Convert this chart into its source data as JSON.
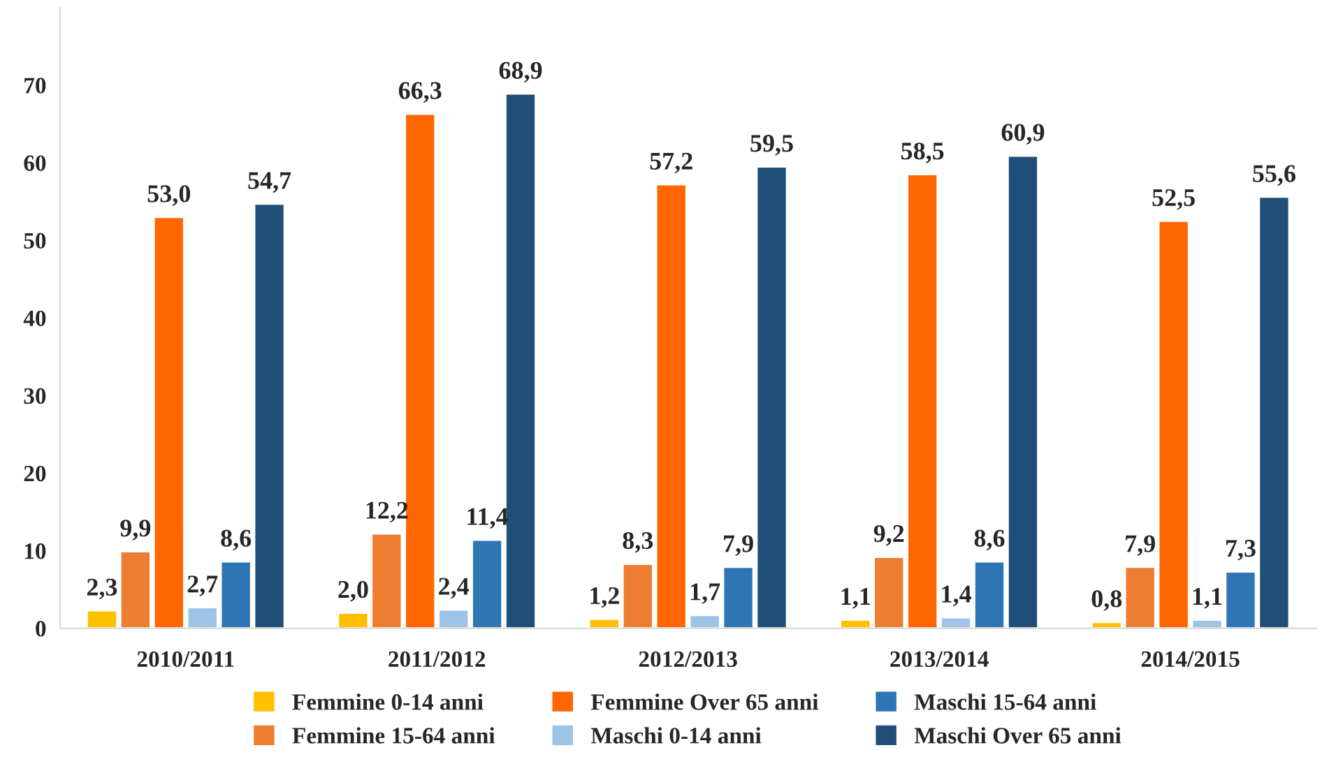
{
  "chart_data": {
    "type": "bar",
    "categories": [
      "2010/2011",
      "2011/2012",
      "2012/2013",
      "2013/2014",
      "2014/2015"
    ],
    "series": [
      {
        "name": "Femmine 0-14 anni",
        "color": "#ffc000",
        "values": [
          2.3,
          2.0,
          1.2,
          1.1,
          0.8
        ],
        "value_labels": [
          "2,3",
          "2,0",
          "1,2",
          "1,1",
          "0,8"
        ]
      },
      {
        "name": "Femmine 15-64 anni",
        "color": "#ed7d31",
        "values": [
          9.9,
          12.2,
          8.3,
          9.2,
          7.9
        ],
        "value_labels": [
          "9,9",
          "12,2",
          "8,3",
          "9,2",
          "7,9"
        ]
      },
      {
        "name": "Femmine Over 65 anni",
        "color": "#ff6600",
        "values": [
          53.0,
          66.3,
          57.2,
          58.5,
          52.5
        ],
        "value_labels": [
          "53,0",
          "66,3",
          "57,2",
          "58,5",
          "52,5"
        ]
      },
      {
        "name": "Maschi 0-14 anni",
        "color": "#9dc3e6",
        "values": [
          2.7,
          2.4,
          1.7,
          1.4,
          1.1
        ],
        "value_labels": [
          "2,7",
          "2,4",
          "1,7",
          "1,4",
          "1,1"
        ]
      },
      {
        "name": "Maschi 15-64 anni",
        "color": "#2e75b6",
        "values": [
          8.6,
          11.4,
          7.9,
          8.6,
          7.3
        ],
        "value_labels": [
          "8,6",
          "11,4",
          "7,9",
          "8,6",
          "7,3"
        ]
      },
      {
        "name": "Maschi Over 65 anni",
        "color": "#1f4e79",
        "values": [
          54.7,
          68.9,
          59.5,
          60.9,
          55.6
        ],
        "value_labels": [
          "54,7",
          "68,9",
          "59,5",
          "60,9",
          "55,6"
        ]
      }
    ],
    "ylim": [
      0,
      80
    ],
    "yticks": [
      0,
      10,
      20,
      30,
      40,
      50,
      60,
      70
    ],
    "grid": false,
    "legend": "bottom"
  }
}
